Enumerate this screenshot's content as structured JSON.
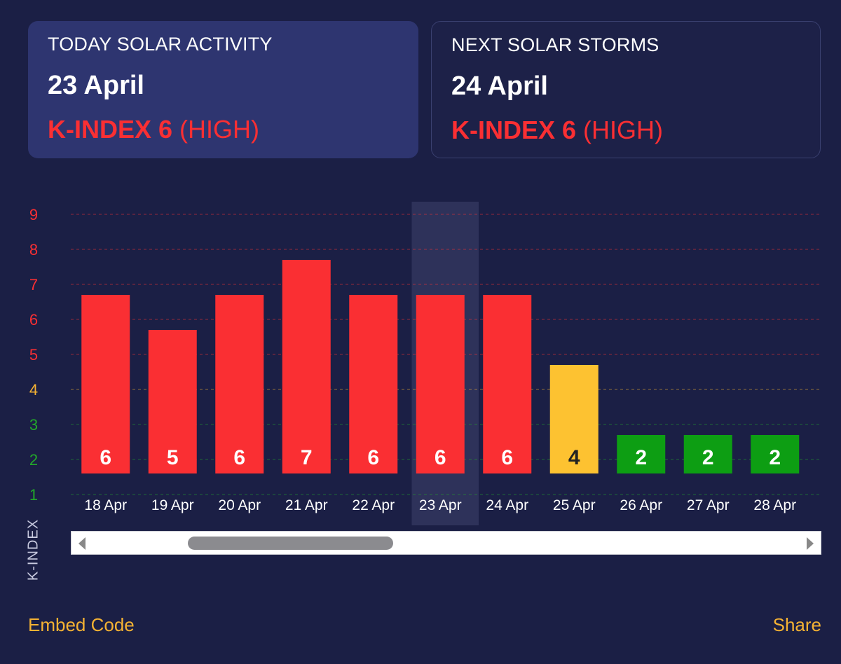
{
  "today": {
    "label": "TODAY SOLAR ACTIVITY",
    "date": "23 April",
    "k_text": "K-INDEX 6",
    "level_text": "(HIGH)"
  },
  "next": {
    "label": "NEXT SOLAR STORMS",
    "date": "24 April",
    "k_text": "K-INDEX 6",
    "level_text": "(HIGH)"
  },
  "footer": {
    "embed_label": "Embed Code",
    "share_label": "Share"
  },
  "colors": {
    "high": "#fa2f33",
    "moderate": "#fdc231",
    "low": "#0d9e13",
    "background": "#1b1f45",
    "card_active": "#2e3570"
  },
  "chart_data": {
    "type": "bar",
    "categories": [
      "18 Apr",
      "19 Apr",
      "20 Apr",
      "21 Apr",
      "22 Apr",
      "23 Apr",
      "24 Apr",
      "25 Apr",
      "26 Apr",
      "27 Apr",
      "28 Apr"
    ],
    "values": [
      6,
      5,
      6,
      7,
      6,
      6,
      6,
      4,
      2,
      2,
      2
    ],
    "bar_colors": [
      "#fa2f33",
      "#fa2f33",
      "#fa2f33",
      "#fa2f33",
      "#fa2f33",
      "#fa2f33",
      "#fa2f33",
      "#fdc231",
      "#0d9e13",
      "#0d9e13",
      "#0d9e13"
    ],
    "ylabel": "K-INDEX",
    "yticks": [
      "1",
      "2",
      "3",
      "4",
      "5",
      "6",
      "7",
      "8",
      "9"
    ],
    "ytick_colors": [
      "#22a82a",
      "#22a82a",
      "#22a82a",
      "#f5b233",
      "#fa2f33",
      "#fa2f33",
      "#fa2f33",
      "#fa2f33",
      "#fa2f33"
    ],
    "ylim": [
      1,
      9
    ],
    "highlighted_category": "23 Apr",
    "grid": true
  }
}
